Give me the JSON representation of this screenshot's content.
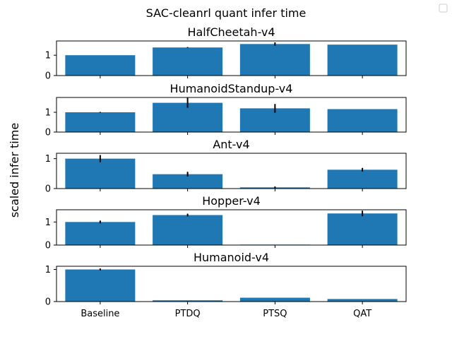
{
  "chart_data": {
    "type": "bar",
    "suptitle": "SAC-cleanrl quant infer time",
    "ylabel": "scaled infer time",
    "categories": [
      "Baseline",
      "PTDQ",
      "PTSQ",
      "QAT"
    ],
    "bar_color": "#1f77b4",
    "legend": "top-right, empty",
    "subplots": [
      {
        "title": "HalfCheetah-v4",
        "ylim": [
          0,
          1.7
        ],
        "yticks": [
          "0",
          "1"
        ],
        "values": [
          1.0,
          1.38,
          1.55,
          1.52
        ],
        "errors": [
          0.0,
          0.02,
          0.08,
          0.0
        ]
      },
      {
        "title": "HumanoidStandup-v4",
        "ylim": [
          0,
          1.75
        ],
        "yticks": [
          "0",
          "1"
        ],
        "values": [
          1.0,
          1.48,
          1.2,
          1.16
        ],
        "errors": [
          0.02,
          0.25,
          0.22,
          0.0
        ]
      },
      {
        "title": "Ant-v4",
        "ylim": [
          0,
          1.18
        ],
        "yticks": [
          "0",
          "1"
        ],
        "values": [
          1.0,
          0.48,
          0.04,
          0.63
        ],
        "errors": [
          0.12,
          0.08,
          0.03,
          0.06
        ]
      },
      {
        "title": "Hopper-v4",
        "ylim": [
          0,
          1.53
        ],
        "yticks": [
          "0",
          "1"
        ],
        "values": [
          1.0,
          1.3,
          0.02,
          1.37
        ],
        "errors": [
          0.06,
          0.06,
          0.0,
          0.12
        ]
      },
      {
        "title": "Humanoid-v4",
        "ylim": [
          0,
          1.1
        ],
        "yticks": [
          "0",
          "1"
        ],
        "values": [
          1.0,
          0.04,
          0.12,
          0.08
        ],
        "errors": [
          0.03,
          0.0,
          0.0,
          0.0
        ]
      }
    ]
  }
}
